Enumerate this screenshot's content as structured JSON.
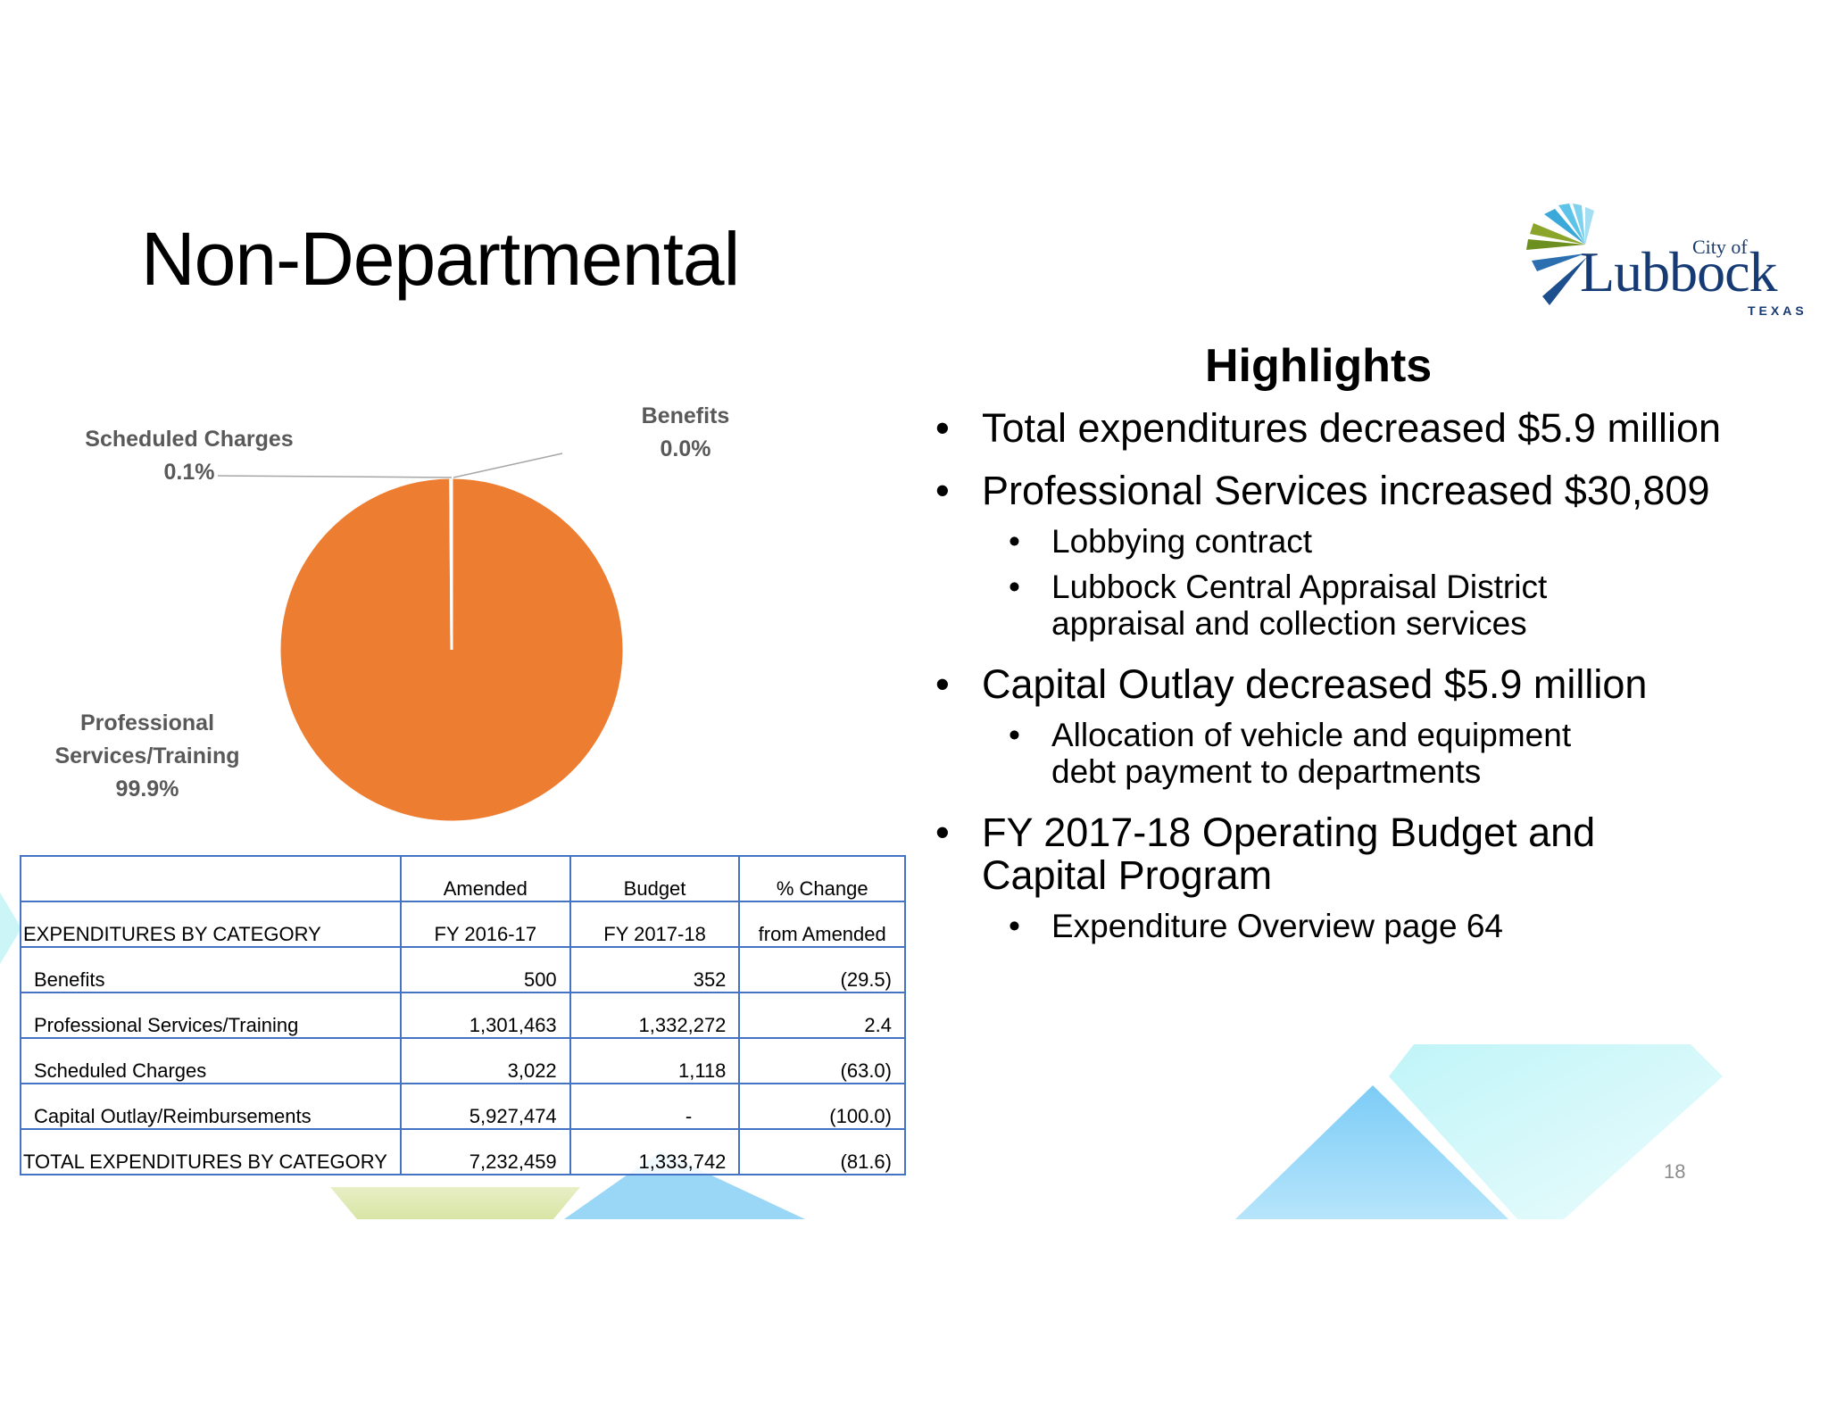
{
  "slide": {
    "title": "Non-Departmental",
    "number": "18"
  },
  "logo": {
    "city_of": "City of",
    "name": "Lubbock",
    "state": "TEXAS"
  },
  "chart_data": {
    "type": "pie",
    "categories": [
      "Benefits",
      "Professional Services/Training",
      "Scheduled Charges"
    ],
    "values": [
      0.0,
      99.9,
      0.1
    ],
    "data_labels": [
      "Benefits\n0.0%",
      "Professional\nServices/Training\n99.9%",
      "Scheduled Charges\n0.1%"
    ],
    "colors": {
      "Benefits": "#4472c4",
      "Professional Services/Training": "#ed7d31",
      "Scheduled Charges": "#a5a5a5"
    },
    "labels": {
      "benefits": {
        "name": "Benefits",
        "pct": "0.0%"
      },
      "professional": {
        "line1": "Professional",
        "line2": "Services/Training",
        "pct": "99.9%"
      },
      "scheduled": {
        "name": "Scheduled Charges",
        "pct": "0.1%"
      }
    }
  },
  "table": {
    "header_row1": [
      "",
      "Amended",
      "Budget",
      "% Change"
    ],
    "header_row2": [
      "EXPENDITURES BY CATEGORY",
      "FY 2016-17",
      "FY 2017-18",
      "from Amended"
    ],
    "rows": [
      [
        "Benefits",
        "500",
        "352",
        "(29.5)"
      ],
      [
        "Professional Services/Training",
        "1,301,463",
        "1,332,272",
        "2.4"
      ],
      [
        "Scheduled Charges",
        "3,022",
        "1,118",
        "(63.0)"
      ],
      [
        "Capital Outlay/Reimbursements",
        "5,927,474",
        "-",
        "(100.0)"
      ]
    ],
    "total": [
      "TOTAL EXPENDITURES BY CATEGORY",
      "7,232,459",
      "1,333,742",
      "(81.6)"
    ]
  },
  "highlights": {
    "title": "Highlights",
    "b1": "Total expenditures decreased $5.9 million",
    "b2": "Professional Services increased $30,809",
    "b2_subs": [
      "Lobbying contract",
      "Lubbock Central Appraisal District appraisal and collection services"
    ],
    "b3": "Capital Outlay decreased $5.9 million",
    "b3_subs": [
      "Allocation of vehicle and equipment debt payment to departments"
    ],
    "b4": "FY 2017-18 Operating Budget and Capital Program",
    "b4_subs": [
      "Expenditure Overview page 64"
    ]
  },
  "colors": {
    "table_border": "#4472c4",
    "pie_main": "#ed7d31",
    "label_gray": "#595959",
    "logo_blue": "#163a73"
  }
}
